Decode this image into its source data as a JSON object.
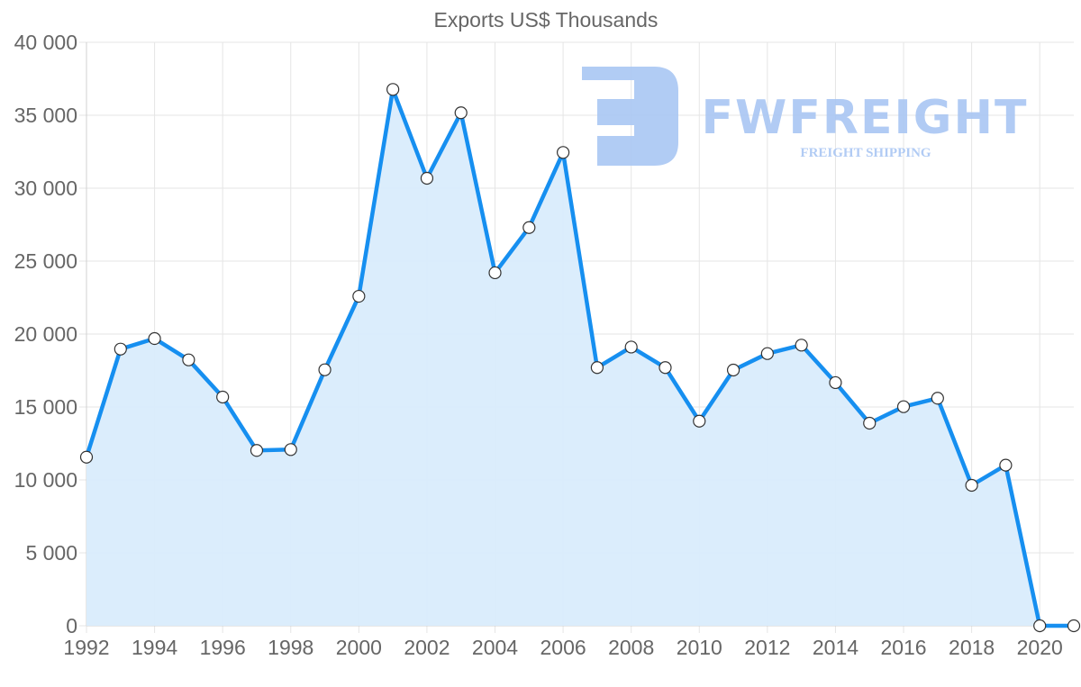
{
  "chart_data": {
    "type": "area",
    "title": "Exports US$ Thousands",
    "xlabel": "",
    "ylabel": "",
    "x": [
      1992,
      1993,
      1994,
      1995,
      1996,
      1997,
      1998,
      1999,
      2000,
      2001,
      2002,
      2003,
      2004,
      2005,
      2006,
      2007,
      2008,
      2009,
      2010,
      2011,
      2012,
      2013,
      2014,
      2015,
      2016,
      2017,
      2018,
      2019,
      2020,
      2021
    ],
    "series": [
      {
        "name": "Exports US$ Thousands",
        "values": [
          11560,
          18970,
          19690,
          18230,
          15680,
          12020,
          12080,
          17550,
          22590,
          36770,
          30680,
          35170,
          24200,
          27300,
          32450,
          17700,
          19110,
          17700,
          14030,
          17530,
          18660,
          19240,
          16670,
          13890,
          15020,
          15600,
          9630,
          11010,
          0,
          0
        ]
      }
    ],
    "ylim": [
      0,
      40000
    ],
    "yticks": [
      0,
      5000,
      10000,
      15000,
      20000,
      25000,
      30000,
      35000,
      40000
    ],
    "ytick_labels": [
      "0",
      "5 000",
      "10 000",
      "15 000",
      "20 000",
      "25 000",
      "30 000",
      "35 000",
      "40 000"
    ],
    "xticks": [
      1992,
      1994,
      1996,
      1998,
      2000,
      2002,
      2004,
      2006,
      2008,
      2010,
      2012,
      2014,
      2016,
      2018,
      2020
    ],
    "xtick_labels": [
      "1992",
      "1994",
      "1996",
      "1998",
      "2000",
      "2002",
      "2004",
      "2006",
      "2008",
      "2010",
      "2012",
      "2014",
      "2016",
      "2018",
      "2020"
    ],
    "grid": true,
    "legend": "none",
    "colors": {
      "line": "#168ff0",
      "fill": "#d9ecfc",
      "marker_fill": "#ffffff",
      "marker_stroke": "#333333",
      "grid": "#e5e5e5",
      "text": "#666666"
    }
  },
  "watermark": {
    "brand": "FWFREIGHT",
    "tagline": "FREIGHT SHIPPING",
    "color": "#a9c6f3"
  }
}
